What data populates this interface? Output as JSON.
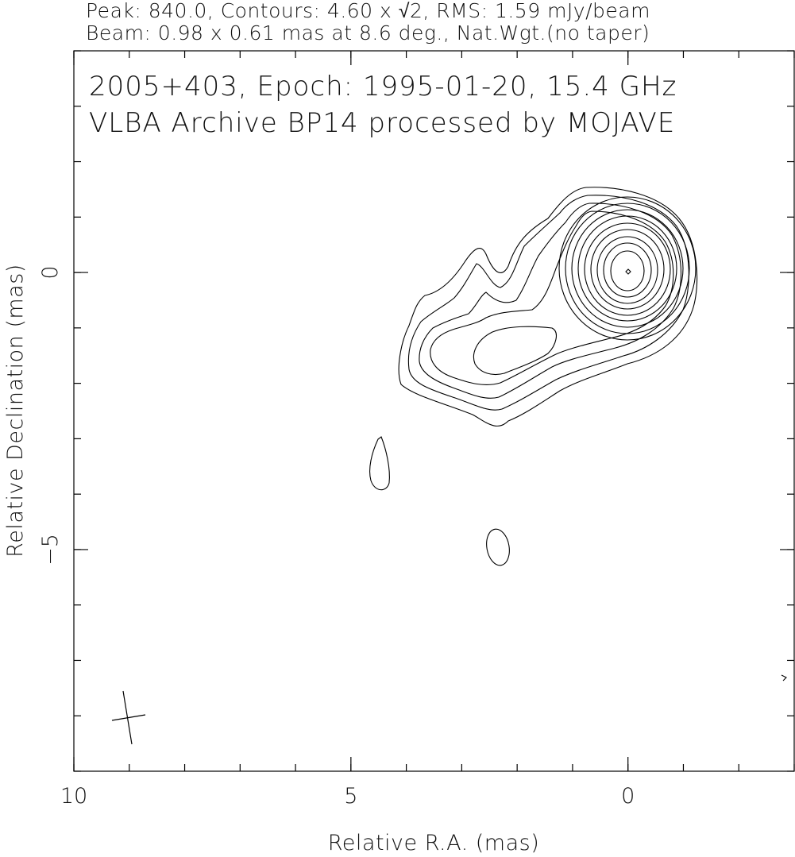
{
  "chart_data": {
    "type": "contour",
    "header": [
      "Peak: 840.0, Contours: 4.60 x √2, RMS: 1.59 mJy/beam",
      "Beam: 0.98 x 0.61 mas at 8.6 deg., Nat.Wgt.(no taper)"
    ],
    "title": "2005+403, Epoch: 1995-01-20, 15.4 GHz",
    "subtitle": "VLBA Archive BP14 processed by MOJAVE",
    "xlabel": "Relative R.A. (mas)",
    "ylabel": "Relative Declination (mas)",
    "xlim": [
      10,
      -3
    ],
    "xticks": [
      10,
      5,
      0
    ],
    "ylim": [
      -9,
      4
    ],
    "yticks": [
      {
        "value": -5,
        "label": "−5"
      },
      0
    ]
  }
}
